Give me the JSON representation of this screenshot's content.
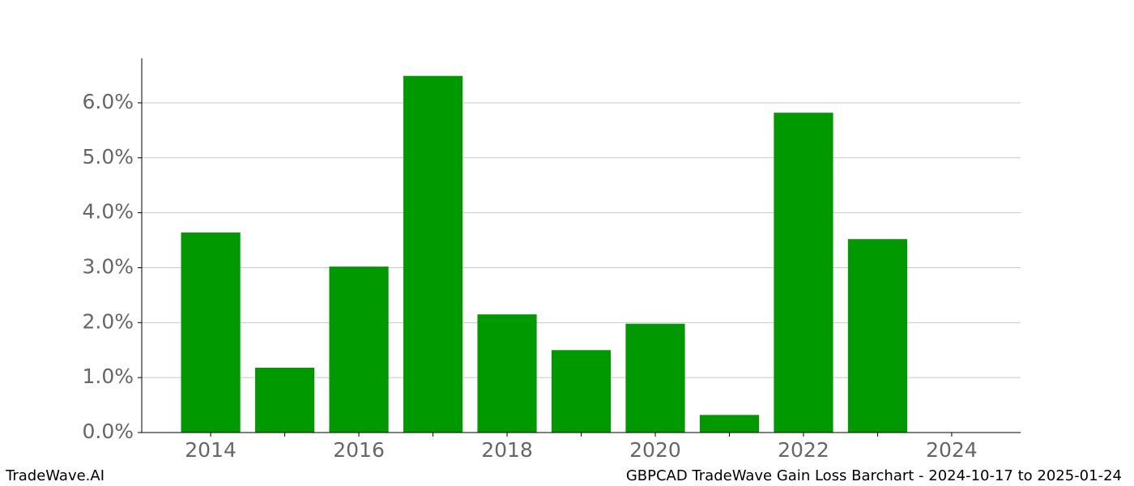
{
  "chart_data": {
    "type": "bar",
    "x": [
      2014,
      2015,
      2016,
      2017,
      2018,
      2019,
      2020,
      2021,
      2022,
      2023
    ],
    "values": [
      3.64,
      1.18,
      3.02,
      6.49,
      2.15,
      1.5,
      1.98,
      0.32,
      5.82,
      3.52
    ],
    "color": "#009900",
    "xlim": [
      2013.07,
      2024.93
    ],
    "xticks": [
      2014,
      2016,
      2018,
      2020,
      2022,
      2024
    ],
    "xminorticks": [
      2015,
      2017,
      2019,
      2021,
      2023
    ],
    "ylim": [
      0,
      6.81
    ],
    "yticks": [
      {
        "value": 0,
        "label": "0.0%"
      },
      {
        "value": 1,
        "label": "1.0%"
      },
      {
        "value": 2,
        "label": "2.0%"
      },
      {
        "value": 3,
        "label": "3.0%"
      },
      {
        "value": 4,
        "label": "4.0%"
      },
      {
        "value": 5,
        "label": "5.0%"
      },
      {
        "value": 6,
        "label": "6.0%"
      }
    ],
    "grid": true
  },
  "footer": {
    "left": "TradeWave.AI",
    "right": "GBPCAD TradeWave Gain Loss Barchart - 2024-10-17 to 2025-01-24"
  }
}
